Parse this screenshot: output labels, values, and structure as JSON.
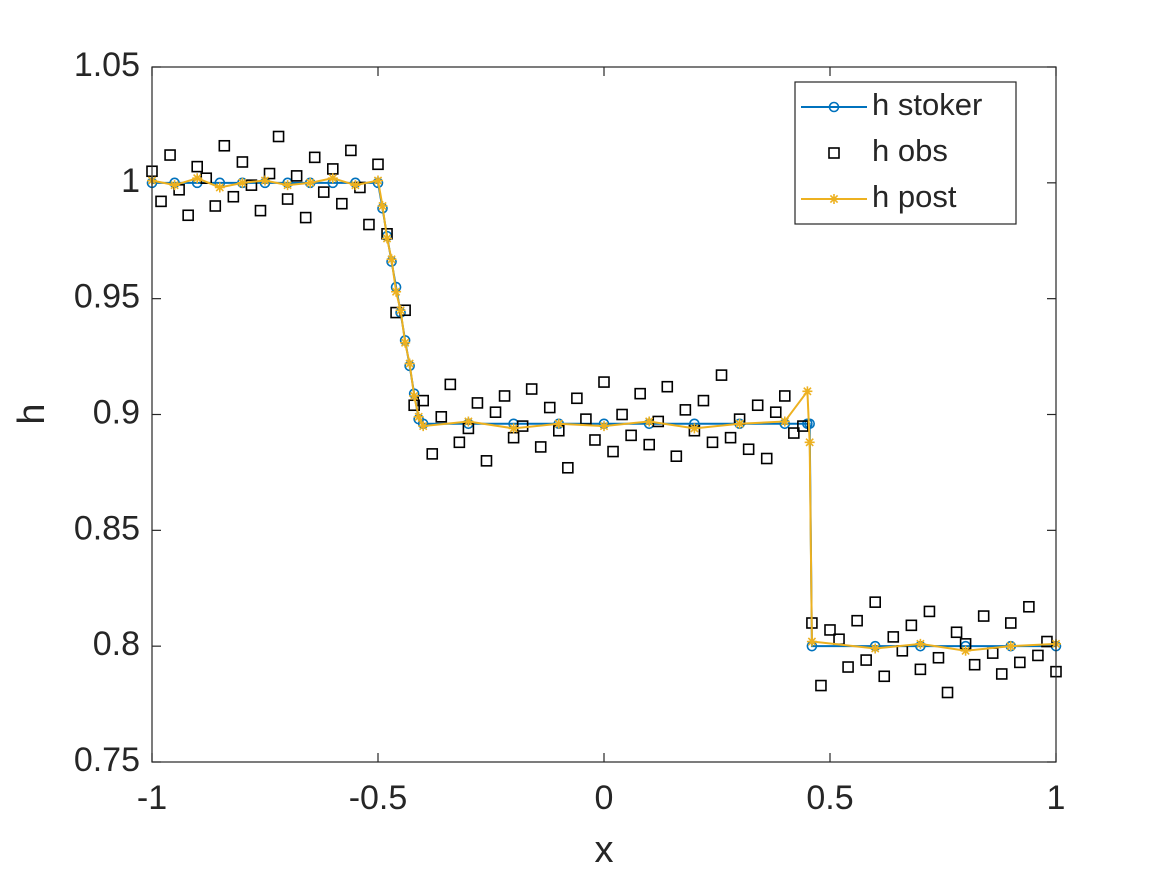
{
  "chart_data": {
    "type": "line",
    "xlabel": "x",
    "ylabel": "h",
    "xlim": [
      -1,
      1
    ],
    "ylim": [
      0.75,
      1.05
    ],
    "xticks": [
      -1,
      -0.5,
      0,
      0.5,
      1
    ],
    "yticks": [
      0.75,
      0.8,
      0.85,
      0.9,
      0.95,
      1,
      1.05
    ],
    "grid": false,
    "legend": "northeast",
    "series": [
      {
        "name": "h stoker",
        "color": "#0072bd",
        "marker": "circle",
        "line": true,
        "x": [
          -1,
          -0.95,
          -0.9,
          -0.85,
          -0.8,
          -0.75,
          -0.7,
          -0.65,
          -0.6,
          -0.55,
          -0.5,
          -0.49,
          -0.48,
          -0.47,
          -0.46,
          -0.45,
          -0.44,
          -0.43,
          -0.42,
          -0.41,
          -0.4,
          -0.3,
          -0.2,
          -0.1,
          0,
          0.1,
          0.2,
          0.3,
          0.4,
          0.45,
          0.455,
          0.46,
          0.6,
          0.7,
          0.8,
          0.9,
          1
        ],
        "values": [
          1,
          1,
          1,
          1,
          1,
          1,
          1,
          1,
          1,
          1,
          1,
          0.989,
          0.977,
          0.966,
          0.955,
          0.944,
          0.932,
          0.921,
          0.909,
          0.898,
          0.896,
          0.896,
          0.896,
          0.896,
          0.896,
          0.896,
          0.896,
          0.896,
          0.896,
          0.896,
          0.896,
          0.8,
          0.8,
          0.8,
          0.8,
          0.8,
          0.8
        ]
      },
      {
        "name": "h obs",
        "color": "#000000",
        "marker": "square",
        "line": false,
        "x": [
          -1,
          -0.98,
          -0.96,
          -0.94,
          -0.92,
          -0.9,
          -0.88,
          -0.86,
          -0.84,
          -0.82,
          -0.8,
          -0.78,
          -0.76,
          -0.74,
          -0.72,
          -0.7,
          -0.68,
          -0.66,
          -0.64,
          -0.62,
          -0.6,
          -0.58,
          -0.56,
          -0.54,
          -0.52,
          -0.5,
          -0.48,
          -0.46,
          -0.44,
          -0.42,
          -0.4,
          -0.38,
          -0.36,
          -0.34,
          -0.32,
          -0.3,
          -0.28,
          -0.26,
          -0.24,
          -0.22,
          -0.2,
          -0.18,
          -0.16,
          -0.14,
          -0.12,
          -0.1,
          -0.08,
          -0.06,
          -0.04,
          -0.02,
          0,
          0.02,
          0.04,
          0.06,
          0.08,
          0.1,
          0.12,
          0.14,
          0.16,
          0.18,
          0.2,
          0.22,
          0.24,
          0.26,
          0.28,
          0.3,
          0.32,
          0.34,
          0.36,
          0.38,
          0.4,
          0.42,
          0.44,
          0.46,
          0.48,
          0.5,
          0.52,
          0.54,
          0.56,
          0.58,
          0.6,
          0.62,
          0.64,
          0.66,
          0.68,
          0.7,
          0.72,
          0.74,
          0.76,
          0.78,
          0.8,
          0.82,
          0.84,
          0.86,
          0.88,
          0.9,
          0.92,
          0.94,
          0.96,
          0.98,
          1
        ],
        "values": [
          1.005,
          0.992,
          1.012,
          0.997,
          0.986,
          1.007,
          1.002,
          0.99,
          1.016,
          0.994,
          1.009,
          0.999,
          0.988,
          1.004,
          1.02,
          0.993,
          1.003,
          0.985,
          1.011,
          0.996,
          1.006,
          0.991,
          1.014,
          0.998,
          0.982,
          1.008,
          0.978,
          0.944,
          0.945,
          0.904,
          0.906,
          0.883,
          0.899,
          0.913,
          0.888,
          0.894,
          0.905,
          0.88,
          0.901,
          0.908,
          0.89,
          0.895,
          0.911,
          0.886,
          0.903,
          0.893,
          0.877,
          0.907,
          0.898,
          0.889,
          0.914,
          0.884,
          0.9,
          0.891,
          0.909,
          0.887,
          0.897,
          0.912,
          0.882,
          0.902,
          0.893,
          0.906,
          0.888,
          0.917,
          0.89,
          0.898,
          0.885,
          0.904,
          0.881,
          0.901,
          0.908,
          0.892,
          0.895,
          0.81,
          0.783,
          0.807,
          0.803,
          0.791,
          0.811,
          0.794,
          0.819,
          0.787,
          0.804,
          0.798,
          0.809,
          0.79,
          0.815,
          0.795,
          0.78,
          0.806,
          0.801,
          0.792,
          0.813,
          0.797,
          0.788,
          0.81,
          0.793,
          0.817,
          0.796,
          0.802,
          0.789
        ]
      },
      {
        "name": "h post",
        "color": "#edb120",
        "marker": "star",
        "line": true,
        "x": [
          -1,
          -0.95,
          -0.9,
          -0.85,
          -0.8,
          -0.75,
          -0.7,
          -0.65,
          -0.6,
          -0.55,
          -0.5,
          -0.49,
          -0.48,
          -0.47,
          -0.46,
          -0.45,
          -0.44,
          -0.43,
          -0.42,
          -0.41,
          -0.4,
          -0.3,
          -0.2,
          -0.1,
          0,
          0.1,
          0.2,
          0.3,
          0.4,
          0.45,
          0.455,
          0.46,
          0.6,
          0.7,
          0.8,
          0.9,
          1
        ],
        "values": [
          1.001,
          0.999,
          1.002,
          0.998,
          1,
          1.001,
          0.999,
          1,
          1.002,
          0.999,
          1.001,
          0.99,
          0.976,
          0.967,
          0.953,
          0.945,
          0.931,
          0.922,
          0.908,
          0.899,
          0.895,
          0.897,
          0.894,
          0.896,
          0.895,
          0.897,
          0.894,
          0.896,
          0.897,
          0.91,
          0.888,
          0.802,
          0.799,
          0.801,
          0.798,
          0.8,
          0.801
        ]
      }
    ]
  }
}
